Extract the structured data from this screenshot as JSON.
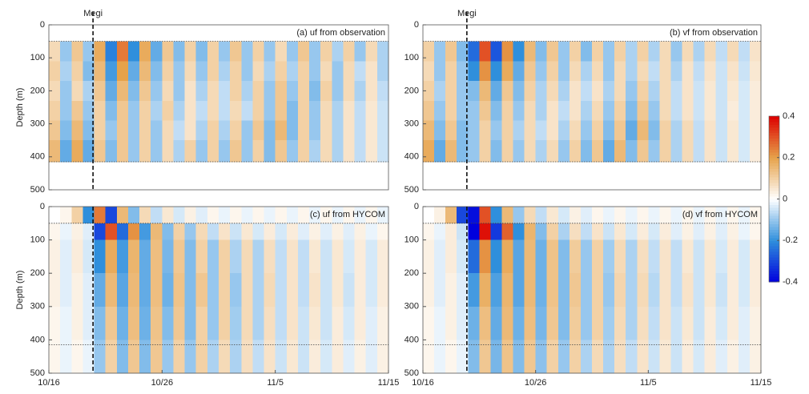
{
  "chart_data": [
    {
      "type": "heatmap",
      "title": "(a) uf from observation",
      "ylabel": "Depth (m)",
      "xbins": [
        0,
        1,
        2,
        3,
        4,
        5,
        6,
        7,
        8,
        9,
        10,
        11,
        12,
        13,
        14,
        15,
        16,
        17,
        18,
        19,
        20,
        21,
        22,
        23,
        24,
        25,
        26,
        27,
        28,
        29,
        30
      ],
      "ybins": [
        50,
        110,
        170,
        230,
        290,
        350,
        415
      ],
      "z": [
        [
          0.08,
          -0.1,
          0.12,
          -0.1,
          0.18,
          -0.22,
          0.25,
          -0.2,
          0.18,
          -0.15,
          0.12,
          -0.12,
          0.1,
          -0.12,
          0.1,
          -0.1,
          0.12,
          -0.1,
          0.1,
          -0.1,
          0.08,
          -0.1,
          0.12,
          -0.1,
          0.1,
          -0.08,
          0.1,
          -0.1,
          0.08,
          -0.08
        ],
        [
          0.1,
          -0.08,
          0.1,
          -0.12,
          0.15,
          -0.18,
          0.2,
          -0.15,
          0.15,
          -0.12,
          0.1,
          -0.1,
          0.08,
          -0.1,
          0.1,
          -0.08,
          0.1,
          -0.1,
          0.08,
          -0.08,
          0.1,
          -0.08,
          0.1,
          -0.1,
          0.08,
          -0.1,
          0.08,
          -0.06,
          0.06,
          -0.08
        ],
        [
          0.08,
          -0.1,
          0.08,
          -0.08,
          0.12,
          -0.15,
          0.15,
          -0.12,
          0.12,
          -0.1,
          0.08,
          -0.1,
          0.06,
          -0.08,
          0.08,
          -0.06,
          0.1,
          -0.08,
          0.1,
          -0.1,
          0.12,
          -0.1,
          0.1,
          -0.12,
          0.1,
          -0.1,
          0.08,
          -0.08,
          0.06,
          -0.06
        ],
        [
          0.1,
          -0.1,
          0.12,
          -0.1,
          0.1,
          -0.12,
          0.12,
          -0.1,
          0.1,
          -0.08,
          0.1,
          -0.08,
          0.06,
          -0.06,
          0.08,
          -0.06,
          0.08,
          -0.06,
          0.1,
          -0.1,
          0.12,
          -0.12,
          0.1,
          -0.1,
          0.08,
          -0.08,
          0.06,
          -0.06,
          0.05,
          -0.05
        ],
        [
          0.12,
          -0.12,
          0.15,
          -0.12,
          0.1,
          -0.1,
          0.12,
          -0.1,
          0.1,
          -0.1,
          0.08,
          -0.06,
          0.06,
          -0.08,
          0.1,
          -0.08,
          0.1,
          -0.1,
          0.12,
          -0.12,
          0.15,
          -0.12,
          0.1,
          -0.1,
          0.08,
          -0.08,
          0.06,
          -0.06,
          0.05,
          -0.05
        ],
        [
          0.15,
          -0.15,
          0.18,
          -0.15,
          0.12,
          -0.12,
          0.12,
          -0.1,
          0.1,
          -0.1,
          0.08,
          -0.08,
          0.1,
          -0.1,
          0.1,
          -0.1,
          0.12,
          -0.1,
          0.1,
          -0.12,
          0.12,
          -0.1,
          0.1,
          -0.08,
          0.08,
          -0.08,
          0.06,
          -0.06,
          0.05,
          -0.05
        ]
      ],
      "ylim": [
        0,
        500
      ],
      "y_inverted": true,
      "yticks": [
        0,
        100,
        200,
        300,
        400,
        500
      ],
      "hlines": [
        50,
        415
      ],
      "vline": {
        "x": 3.9,
        "label": "Megi"
      }
    },
    {
      "type": "heatmap",
      "title": "(b) vf from observation",
      "xbins": [
        0,
        1,
        2,
        3,
        4,
        5,
        6,
        7,
        8,
        9,
        10,
        11,
        12,
        13,
        14,
        15,
        16,
        17,
        18,
        19,
        20,
        21,
        22,
        23,
        24,
        25,
        26,
        27,
        28,
        29,
        30
      ],
      "ybins": [
        50,
        110,
        170,
        230,
        290,
        350,
        415
      ],
      "z": [
        [
          0.1,
          -0.1,
          0.12,
          -0.12,
          -0.25,
          0.3,
          -0.28,
          0.22,
          -0.2,
          0.15,
          -0.12,
          0.12,
          -0.1,
          0.1,
          -0.12,
          0.1,
          -0.1,
          0.1,
          -0.08,
          0.1,
          -0.08,
          0.08,
          -0.1,
          0.08,
          -0.08,
          0.08,
          -0.06,
          0.08,
          -0.06,
          0.06
        ],
        [
          0.08,
          -0.1,
          0.1,
          -0.1,
          -0.2,
          0.22,
          -0.2,
          0.18,
          -0.15,
          0.12,
          -0.1,
          0.1,
          -0.1,
          0.08,
          -0.08,
          0.08,
          -0.1,
          0.08,
          -0.08,
          0.08,
          -0.06,
          0.08,
          -0.08,
          0.06,
          -0.06,
          0.06,
          -0.05,
          0.06,
          -0.05,
          0.05
        ],
        [
          0.1,
          -0.08,
          0.1,
          -0.1,
          -0.12,
          0.15,
          -0.15,
          0.12,
          -0.12,
          0.1,
          -0.08,
          0.08,
          -0.08,
          0.06,
          -0.06,
          0.06,
          -0.08,
          0.08,
          -0.1,
          0.1,
          -0.08,
          0.08,
          -0.06,
          0.06,
          -0.05,
          0.05,
          -0.05,
          0.05,
          -0.04,
          0.04
        ],
        [
          0.12,
          -0.1,
          0.1,
          -0.1,
          -0.1,
          0.12,
          -0.12,
          0.1,
          -0.1,
          0.08,
          -0.08,
          0.06,
          -0.06,
          0.06,
          -0.08,
          0.08,
          -0.1,
          0.1,
          -0.12,
          0.12,
          -0.1,
          0.08,
          -0.06,
          0.06,
          -0.05,
          0.05,
          -0.05,
          0.04,
          -0.04,
          0.04
        ],
        [
          0.15,
          -0.12,
          0.12,
          -0.12,
          -0.1,
          0.1,
          -0.1,
          0.1,
          -0.08,
          0.08,
          -0.06,
          0.06,
          -0.08,
          0.08,
          -0.1,
          0.1,
          -0.12,
          0.12,
          -0.15,
          0.15,
          -0.12,
          0.1,
          -0.08,
          0.08,
          -0.06,
          0.06,
          -0.05,
          0.05,
          -0.04,
          0.04
        ],
        [
          0.18,
          -0.15,
          0.15,
          -0.12,
          -0.1,
          0.1,
          -0.12,
          0.1,
          -0.1,
          0.08,
          -0.08,
          0.08,
          -0.1,
          0.1,
          -0.12,
          0.12,
          -0.15,
          0.15,
          -0.12,
          0.12,
          -0.1,
          0.1,
          -0.08,
          0.08,
          -0.06,
          0.06,
          -0.05,
          0.05,
          -0.04,
          0.04
        ]
      ],
      "ylim": [
        0,
        500
      ],
      "y_inverted": true,
      "yticks": [
        0,
        100,
        200,
        300,
        400,
        500
      ],
      "hlines": [
        50,
        415
      ],
      "vline": {
        "x": 3.9,
        "label": "Megi"
      }
    },
    {
      "type": "heatmap",
      "title": "(c) uf from HYCOM",
      "ylabel": "Depth (m)",
      "xbins": [
        0,
        1,
        2,
        3,
        4,
        5,
        6,
        7,
        8,
        9,
        10,
        11,
        12,
        13,
        14,
        15,
        16,
        17,
        18,
        19,
        20,
        21,
        22,
        23,
        24,
        25,
        26,
        27,
        28,
        29,
        30
      ],
      "ybins": [
        0,
        50,
        100,
        200,
        300,
        400,
        500
      ],
      "z": [
        [
          0,
          0.02,
          0.1,
          -0.2,
          0.25,
          -0.3,
          0.15,
          -0.12,
          0.08,
          -0.06,
          0.05,
          -0.04,
          0.03,
          -0.03,
          0.02,
          -0.02,
          0.02,
          -0.02,
          0.02,
          -0.02,
          0.02,
          -0.02,
          0.02,
          -0.02,
          0.02,
          -0.02,
          0.02,
          -0.02,
          0.02,
          -0.02
        ],
        [
          0.02,
          -0.02,
          0.03,
          -0.03,
          -0.3,
          0.3,
          -0.25,
          0.22,
          -0.18,
          0.15,
          -0.12,
          0.1,
          -0.1,
          0.08,
          -0.06,
          0.06,
          -0.05,
          0.05,
          -0.04,
          0.04,
          -0.04,
          0.04,
          -0.03,
          0.03,
          -0.03,
          0.03,
          -0.03,
          0.03,
          -0.02,
          0.02
        ],
        [
          0.03,
          -0.03,
          0.04,
          -0.04,
          -0.2,
          0.18,
          -0.18,
          0.16,
          -0.15,
          0.14,
          -0.13,
          0.12,
          -0.12,
          0.1,
          -0.1,
          0.1,
          -0.08,
          0.08,
          -0.08,
          0.07,
          -0.06,
          0.06,
          -0.06,
          0.05,
          -0.05,
          0.05,
          -0.04,
          0.04,
          -0.04,
          0.04
        ],
        [
          0.03,
          -0.03,
          0.03,
          -0.03,
          -0.15,
          0.15,
          -0.16,
          0.15,
          -0.15,
          0.14,
          -0.14,
          0.13,
          -0.12,
          0.12,
          -0.1,
          0.1,
          -0.1,
          0.08,
          -0.08,
          0.08,
          -0.06,
          0.06,
          -0.06,
          0.06,
          -0.05,
          0.05,
          -0.05,
          0.04,
          -0.04,
          0.04
        ],
        [
          0.02,
          -0.02,
          0.03,
          -0.03,
          -0.12,
          0.12,
          -0.14,
          0.14,
          -0.14,
          0.13,
          -0.12,
          0.12,
          -0.12,
          0.1,
          -0.1,
          0.1,
          -0.09,
          0.08,
          -0.08,
          0.07,
          -0.06,
          0.06,
          -0.05,
          0.05,
          -0.05,
          0.04,
          -0.04,
          0.04,
          -0.03,
          0.03
        ],
        [
          0.02,
          -0.02,
          0.02,
          -0.02,
          -0.1,
          0.1,
          -0.12,
          0.12,
          -0.12,
          0.12,
          -0.1,
          0.1,
          -0.1,
          0.1,
          -0.08,
          0.08,
          -0.08,
          0.07,
          -0.06,
          0.06,
          -0.05,
          0.05,
          -0.05,
          0.04,
          -0.04,
          0.04,
          -0.03,
          0.03,
          -0.03,
          0.03
        ]
      ],
      "ylim": [
        0,
        500
      ],
      "y_inverted": true,
      "yticks": [
        0,
        100,
        200,
        300,
        400,
        500
      ],
      "xlim": [
        0,
        30
      ],
      "xticks": [
        {
          "value": 0,
          "label": "10/16"
        },
        {
          "value": 10,
          "label": "10/26"
        },
        {
          "value": 20,
          "label": "11/5"
        },
        {
          "value": 30,
          "label": "11/15"
        }
      ],
      "hlines": [
        50,
        415
      ],
      "vline": {
        "x": 3.9
      }
    },
    {
      "type": "heatmap",
      "title": "(d) vf from HYCOM",
      "xbins": [
        0,
        1,
        2,
        3,
        4,
        5,
        6,
        7,
        8,
        9,
        10,
        11,
        12,
        13,
        14,
        15,
        16,
        17,
        18,
        19,
        20,
        21,
        22,
        23,
        24,
        25,
        26,
        27,
        28,
        29,
        30
      ],
      "ybins": [
        0,
        50,
        100,
        200,
        300,
        400,
        500
      ],
      "z": [
        [
          0,
          0.03,
          0.15,
          -0.3,
          -0.38,
          0.3,
          -0.2,
          0.15,
          -0.1,
          0.08,
          -0.06,
          0.05,
          -0.04,
          0.03,
          -0.03,
          0.02,
          -0.02,
          0.02,
          -0.02,
          0.02,
          -0.02,
          0.02,
          -0.02,
          0.02,
          -0.02,
          0.02,
          -0.02,
          0.02,
          -0.02,
          0.02
        ],
        [
          0.02,
          -0.02,
          0.04,
          -0.05,
          -0.4,
          0.38,
          -0.32,
          0.28,
          -0.2,
          0.16,
          -0.12,
          0.1,
          -0.08,
          0.07,
          -0.06,
          0.06,
          -0.05,
          0.05,
          -0.04,
          0.04,
          -0.04,
          0.04,
          -0.03,
          0.03,
          -0.03,
          0.03,
          -0.03,
          0.03,
          -0.02,
          0.02
        ],
        [
          0.03,
          -0.03,
          0.04,
          -0.04,
          -0.25,
          0.22,
          -0.2,
          0.18,
          -0.16,
          0.15,
          -0.14,
          0.13,
          -0.12,
          0.11,
          -0.1,
          0.1,
          -0.09,
          0.08,
          -0.08,
          0.07,
          -0.06,
          0.06,
          -0.06,
          0.05,
          -0.05,
          0.05,
          -0.04,
          0.04,
          -0.04,
          0.04
        ],
        [
          0.03,
          -0.03,
          0.03,
          -0.03,
          -0.18,
          0.17,
          -0.17,
          0.16,
          -0.16,
          0.15,
          -0.14,
          0.13,
          -0.12,
          0.12,
          -0.1,
          0.1,
          -0.1,
          0.09,
          -0.08,
          0.08,
          -0.07,
          0.06,
          -0.06,
          0.06,
          -0.05,
          0.05,
          -0.05,
          0.04,
          -0.04,
          0.04
        ],
        [
          0.02,
          -0.02,
          0.03,
          -0.03,
          -0.14,
          0.14,
          -0.15,
          0.15,
          -0.14,
          0.14,
          -0.13,
          0.12,
          -0.12,
          0.11,
          -0.1,
          0.1,
          -0.09,
          0.08,
          -0.08,
          0.07,
          -0.06,
          0.06,
          -0.05,
          0.05,
          -0.05,
          0.04,
          -0.04,
          0.04,
          -0.03,
          0.03
        ],
        [
          0.02,
          -0.02,
          0.02,
          -0.02,
          -0.12,
          0.12,
          -0.13,
          0.13,
          -0.12,
          0.12,
          -0.11,
          0.1,
          -0.1,
          0.1,
          -0.08,
          0.08,
          -0.08,
          0.07,
          -0.06,
          0.06,
          -0.05,
          0.05,
          -0.05,
          0.04,
          -0.04,
          0.04,
          -0.03,
          0.03,
          -0.03,
          0.03
        ]
      ],
      "ylim": [
        0,
        500
      ],
      "y_inverted": true,
      "yticks": [
        0,
        100,
        200,
        300,
        400,
        500
      ],
      "xlim": [
        0,
        30
      ],
      "xticks": [
        {
          "value": 0,
          "label": "10/16"
        },
        {
          "value": 10,
          "label": "10/26"
        },
        {
          "value": 20,
          "label": "11/5"
        },
        {
          "value": 30,
          "label": "11/15"
        }
      ],
      "hlines": [
        50,
        415
      ],
      "vline": {
        "x": 3.9
      }
    }
  ],
  "colorbar": {
    "zlim": [
      -0.4,
      0.4
    ],
    "ticks": [
      -0.4,
      -0.2,
      0,
      0.2,
      0.4
    ],
    "colormap": [
      "#0000dd",
      "#2f8fdc",
      "#ffffff",
      "#e6a24a",
      "#dd0000"
    ]
  }
}
